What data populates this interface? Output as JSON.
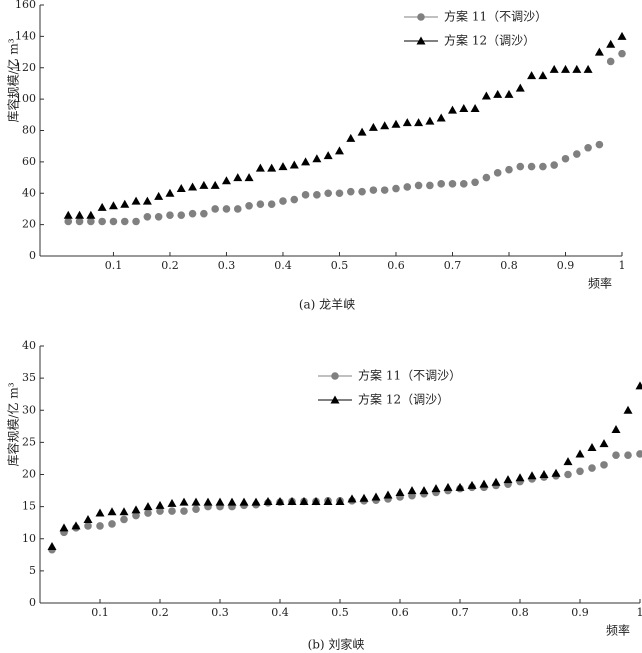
{
  "chart_data": [
    {
      "type": "scatter",
      "caption": "(a) 龙羊峡",
      "y_label": "库容规模/亿 m³",
      "x_label": "频率",
      "xlim": [
        -0.03,
        1
      ],
      "ylim": [
        0,
        160
      ],
      "xticks": [
        0.1,
        0.2,
        0.3,
        0.4,
        0.5,
        0.6,
        0.7,
        0.8,
        0.9,
        1
      ],
      "yticks": [
        0,
        20,
        40,
        60,
        80,
        100,
        120,
        140,
        160
      ],
      "legend": "upper right",
      "x": [
        0.02,
        0.04,
        0.06,
        0.08,
        0.1,
        0.12,
        0.14,
        0.16,
        0.18,
        0.2,
        0.22,
        0.24,
        0.26,
        0.28,
        0.3,
        0.32,
        0.34,
        0.36,
        0.38,
        0.4,
        0.42,
        0.44,
        0.46,
        0.48,
        0.5,
        0.52,
        0.54,
        0.56,
        0.58,
        0.6,
        0.62,
        0.64,
        0.66,
        0.68,
        0.7,
        0.72,
        0.74,
        0.76,
        0.78,
        0.8,
        0.82,
        0.84,
        0.86,
        0.88,
        0.9,
        0.92,
        0.94,
        0.96,
        0.98,
        1
      ],
      "series": [
        {
          "name": "方案 11（不调沙）",
          "color": "#808080",
          "marker": "circle",
          "values": [
            22,
            22,
            22,
            22,
            22,
            22,
            22,
            25,
            25,
            26,
            26,
            27,
            27,
            30,
            30,
            30,
            32,
            33,
            33,
            35,
            36,
            39,
            39,
            40,
            40,
            41,
            41,
            42,
            42,
            43,
            44,
            45,
            45,
            46,
            46,
            46,
            47,
            50,
            53,
            55,
            57,
            57,
            57,
            58,
            62,
            65,
            69,
            71,
            124,
            129
          ]
        },
        {
          "name": "方案 12（调沙）",
          "color": "#000000",
          "marker": "triangle",
          "values": [
            26,
            26,
            26,
            31,
            32,
            33,
            35,
            35,
            38,
            40,
            43,
            44,
            45,
            45,
            48,
            50,
            50,
            56,
            56,
            57,
            58,
            60,
            62,
            64,
            67,
            75,
            79,
            82,
            83,
            84,
            85,
            85,
            86,
            88,
            93,
            94,
            94,
            102,
            103,
            103,
            107,
            115,
            115,
            119,
            119,
            119,
            119,
            130,
            135,
            140
          ]
        }
      ]
    },
    {
      "type": "scatter",
      "caption": "(b) 刘家峡",
      "y_label": "库容规模/亿 m³",
      "x_label": "频率",
      "xlim": [
        0,
        1
      ],
      "ylim": [
        0,
        40
      ],
      "xticks": [
        0.1,
        0.2,
        0.3,
        0.4,
        0.5,
        0.6,
        0.7,
        0.8,
        0.9,
        1
      ],
      "yticks": [
        0,
        5,
        10,
        15,
        20,
        25,
        30,
        35,
        40
      ],
      "legend": "upper center",
      "x": [
        0.02,
        0.04,
        0.06,
        0.08,
        0.1,
        0.12,
        0.14,
        0.16,
        0.18,
        0.2,
        0.22,
        0.24,
        0.26,
        0.28,
        0.3,
        0.32,
        0.34,
        0.36,
        0.38,
        0.4,
        0.42,
        0.44,
        0.46,
        0.48,
        0.5,
        0.52,
        0.54,
        0.56,
        0.58,
        0.6,
        0.62,
        0.64,
        0.66,
        0.68,
        0.7,
        0.72,
        0.74,
        0.76,
        0.78,
        0.8,
        0.82,
        0.84,
        0.86,
        0.88,
        0.9,
        0.92,
        0.94,
        0.96,
        0.98,
        1
      ],
      "series": [
        {
          "name": "方案 11（不调沙）",
          "color": "#808080",
          "marker": "circle",
          "values": [
            8.3,
            11,
            11.7,
            12,
            12,
            12.3,
            13,
            13.6,
            14,
            14.3,
            14.3,
            14.3,
            14.6,
            15,
            15,
            15,
            15.2,
            15.3,
            15.6,
            15.7,
            15.8,
            15.8,
            15.8,
            15.9,
            15.9,
            15.9,
            15.9,
            16,
            16.2,
            16.5,
            16.7,
            17,
            17.2,
            17.5,
            17.8,
            18,
            18,
            18.3,
            18.5,
            18.9,
            19.3,
            19.6,
            19.8,
            20,
            20.5,
            21,
            21.5,
            23,
            23,
            23.2
          ]
        },
        {
          "name": "方案 12（调沙）",
          "color": "#000000",
          "marker": "triangle",
          "values": [
            8.8,
            11.7,
            12,
            13,
            14,
            14.2,
            14.2,
            14.5,
            15,
            15.2,
            15.5,
            15.7,
            15.7,
            15.7,
            15.7,
            15.7,
            15.7,
            15.7,
            15.8,
            15.8,
            15.8,
            15.8,
            15.8,
            15.8,
            15.8,
            16.2,
            16.3,
            16.5,
            16.8,
            17.2,
            17.5,
            17.5,
            17.8,
            18,
            18,
            18.3,
            18.5,
            18.8,
            19.2,
            19.5,
            19.8,
            20,
            20.2,
            22,
            23.2,
            24.2,
            24.8,
            27,
            30,
            33.8
          ]
        }
      ]
    }
  ]
}
